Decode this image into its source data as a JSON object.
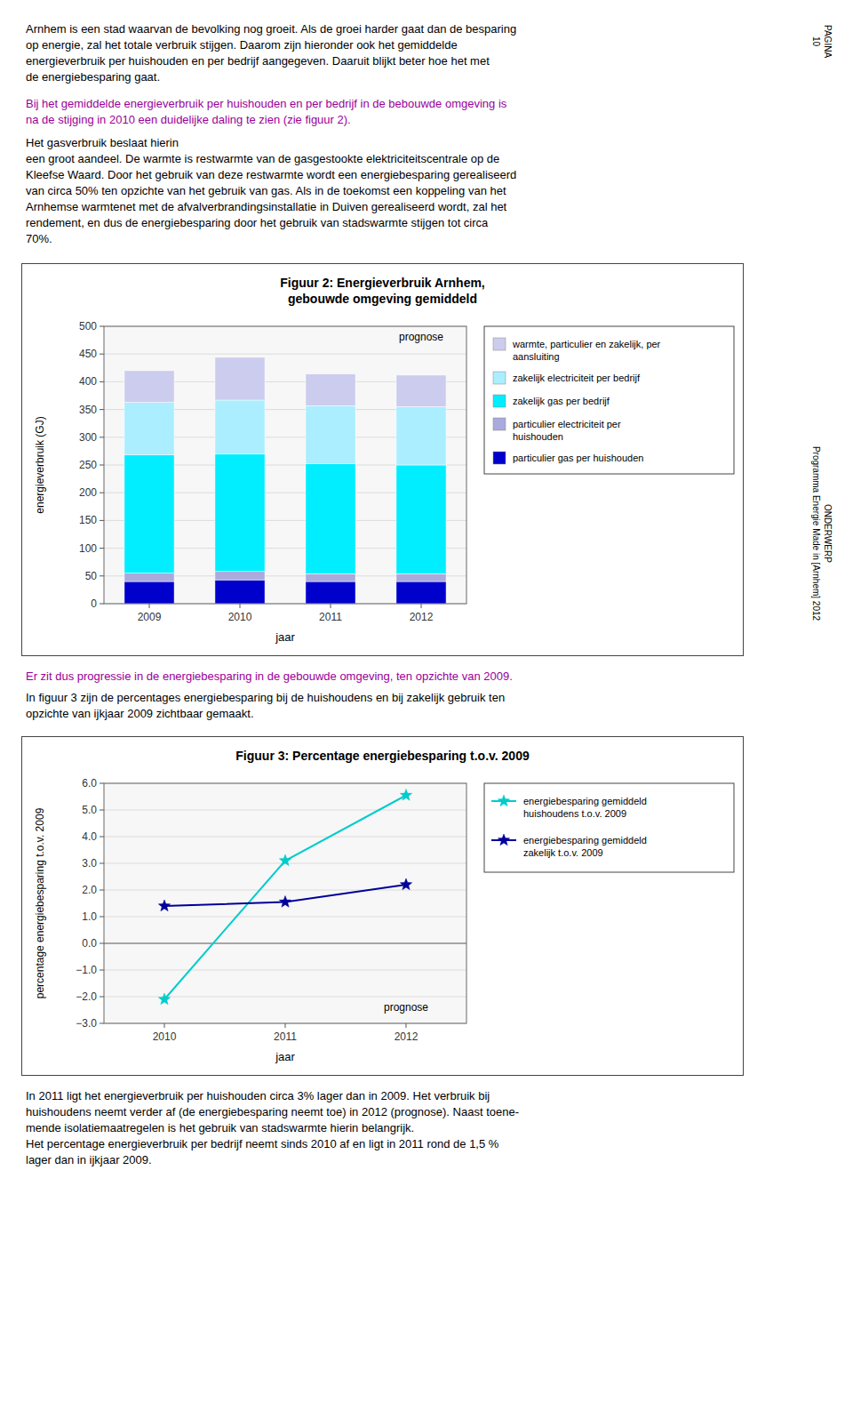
{
  "sidebar": [
    "PAGINA\n10",
    "ONDERWERP\nProgramma Energie Made in [Arnhem] 2012"
  ],
  "page_text": [
    {
      "text": "Arnhem is een stad waarvan de bevolking nog groeit. Als de groei harder gaat dan de besparing\nop energie, zal het totale verbruik stijgen. Daarom zijn hieronder ook het gemiddelde\nenergieverbruik per huishouden en per bedrijf aangegeven. Daaruit blijkt beter hoe het met\nde energiebesparing gaat.",
      "color": "#000000"
    },
    {
      "text": "Bij het gemiddelde energieverbruik per huishouden en per bedrijf in de bebouwde omgeving is\nna de stijging in 2010 een duidelijke daling te zien (zie figuur 2).",
      "color": "#990099"
    },
    {
      "text": "Het gasverbruik beslaat hierin\neen groot aandeel. De warmte is restwarmte van de gasgestookte elektriciteitscentrale op de\nKleefse Waard. Door het gebruik van deze restwarmte wordt een energiebesparing gerealiseerd\nvan circa 50% ten opzichte van het gebruik van gas. Als in de toekomst een koppeling van het\nArnhemse warmtenet met de afvalverbrandingsinstallatie in Duiven gerealiseerd wordt, zal het\nrendement, en dus de energiebesparing door het gebruik van stadswarmte stijgen tot circa\n70%.",
      "color": "#000000"
    },
    {
      "text": "Er zit dus progressie in de energiebesparing in de gebouwde omgeving, ten opzichte van 2009.",
      "color": "#990099"
    },
    {
      "text": "In figuur 3 zijn de percentages energiebesparing bij de huishoudens en bij zakelijk gebruik ten\nopzichte van ijkjaar 2009 zichtbaar gemaakt.",
      "color": "#000000"
    },
    {
      "text": "In 2011 ligt het energieverbruik per huishouden circa 3% lager dan in 2009. Het verbruik bij\nhuishoudens neemt verder af (de energiebesparing neemt toe) in 2012 (prognose). Naast toene-\nmende isolatiemaatregelen is het gebruik van stadswarmte hierin belangrijk.\nHet percentage energieverbruik per bedrijf neemt sinds 2010 af en ligt in 2011 rond de 1,5 %\nlager dan in ijkjaar 2009.",
      "color": "#000000"
    }
  ],
  "chart_data": [
    {
      "type": "bar",
      "stacked": true,
      "title": "Figuur 2: Energieverbruik Arnhem,",
      "subtitle": "gebouwde omgeving gemiddeld",
      "x_label": "jaar",
      "y_label": "energieverbruik (GJ)",
      "categories": [
        "2009",
        "2010",
        "2011",
        "2012"
      ],
      "series": [
        {
          "name": "particulier gas per huishouden",
          "color": "#0000CC",
          "values": [
            40,
            43,
            40,
            40
          ]
        },
        {
          "name": "particulier electriciteit per\nhuishouden",
          "color": "#AAAADD",
          "values": [
            15,
            15,
            14,
            14
          ]
        },
        {
          "name": "zakelijk gas per bedrijf",
          "color": "#00EEFF",
          "values": [
            213,
            212,
            198,
            196
          ]
        },
        {
          "name": "zakelijk electriciteit per bedrijf",
          "color": "#AAEEFF",
          "values": [
            95,
            97,
            105,
            105
          ]
        },
        {
          "name": "warmte, particulier en zakelijk, per\naansluiting",
          "color": "#CCCCEE",
          "values": [
            57,
            77,
            57,
            57
          ]
        }
      ],
      "ylim": [
        0,
        500
      ],
      "yticks": [
        0,
        50,
        100,
        150,
        200,
        250,
        300,
        350,
        400,
        450,
        500
      ],
      "grid": true,
      "legend": "right",
      "annotations": [
        "prognose"
      ]
    },
    {
      "type": "line",
      "title": "Figuur 3: Percentage energiebesparing t.o.v. 2009",
      "x_label": "jaar",
      "y_label": "percentage energiebesparing t.o.v. 2009",
      "x": [
        2010,
        2011,
        2012
      ],
      "xlim": [
        2009.5,
        2012.5
      ],
      "xticks": [
        2010,
        2011,
        2012
      ],
      "series": [
        {
          "name": "energiebesparing gemiddeld\nhuishoudens t.o.v. 2009",
          "color": "#00CCCC",
          "marker": "star",
          "values": [
            -2.1,
            3.1,
            5.55
          ]
        },
        {
          "name": "energiebesparing gemiddeld\nzakelijk t.o.v. 2009",
          "color": "#000099",
          "marker": "star",
          "values": [
            1.4,
            1.55,
            2.2
          ]
        }
      ],
      "ylim": [
        -3.0,
        6.0
      ],
      "yticks": [
        {
          "value": -3.0,
          "label": "−3.0"
        },
        {
          "value": -2.0,
          "label": "−2.0"
        },
        {
          "value": -1.0,
          "label": "−1.0"
        },
        {
          "value": 0.0,
          "label": "0.0"
        },
        {
          "value": 1.0,
          "label": "1.0"
        },
        {
          "value": 2.0,
          "label": "2.0"
        },
        {
          "value": 3.0,
          "label": "3.0"
        },
        {
          "value": 4.0,
          "label": "4.0"
        },
        {
          "value": 5.0,
          "label": "5.0"
        },
        {
          "value": 6.0,
          "label": "6.0"
        }
      ],
      "grid": true,
      "legend": "right",
      "annotations": [
        "prognose"
      ]
    }
  ]
}
